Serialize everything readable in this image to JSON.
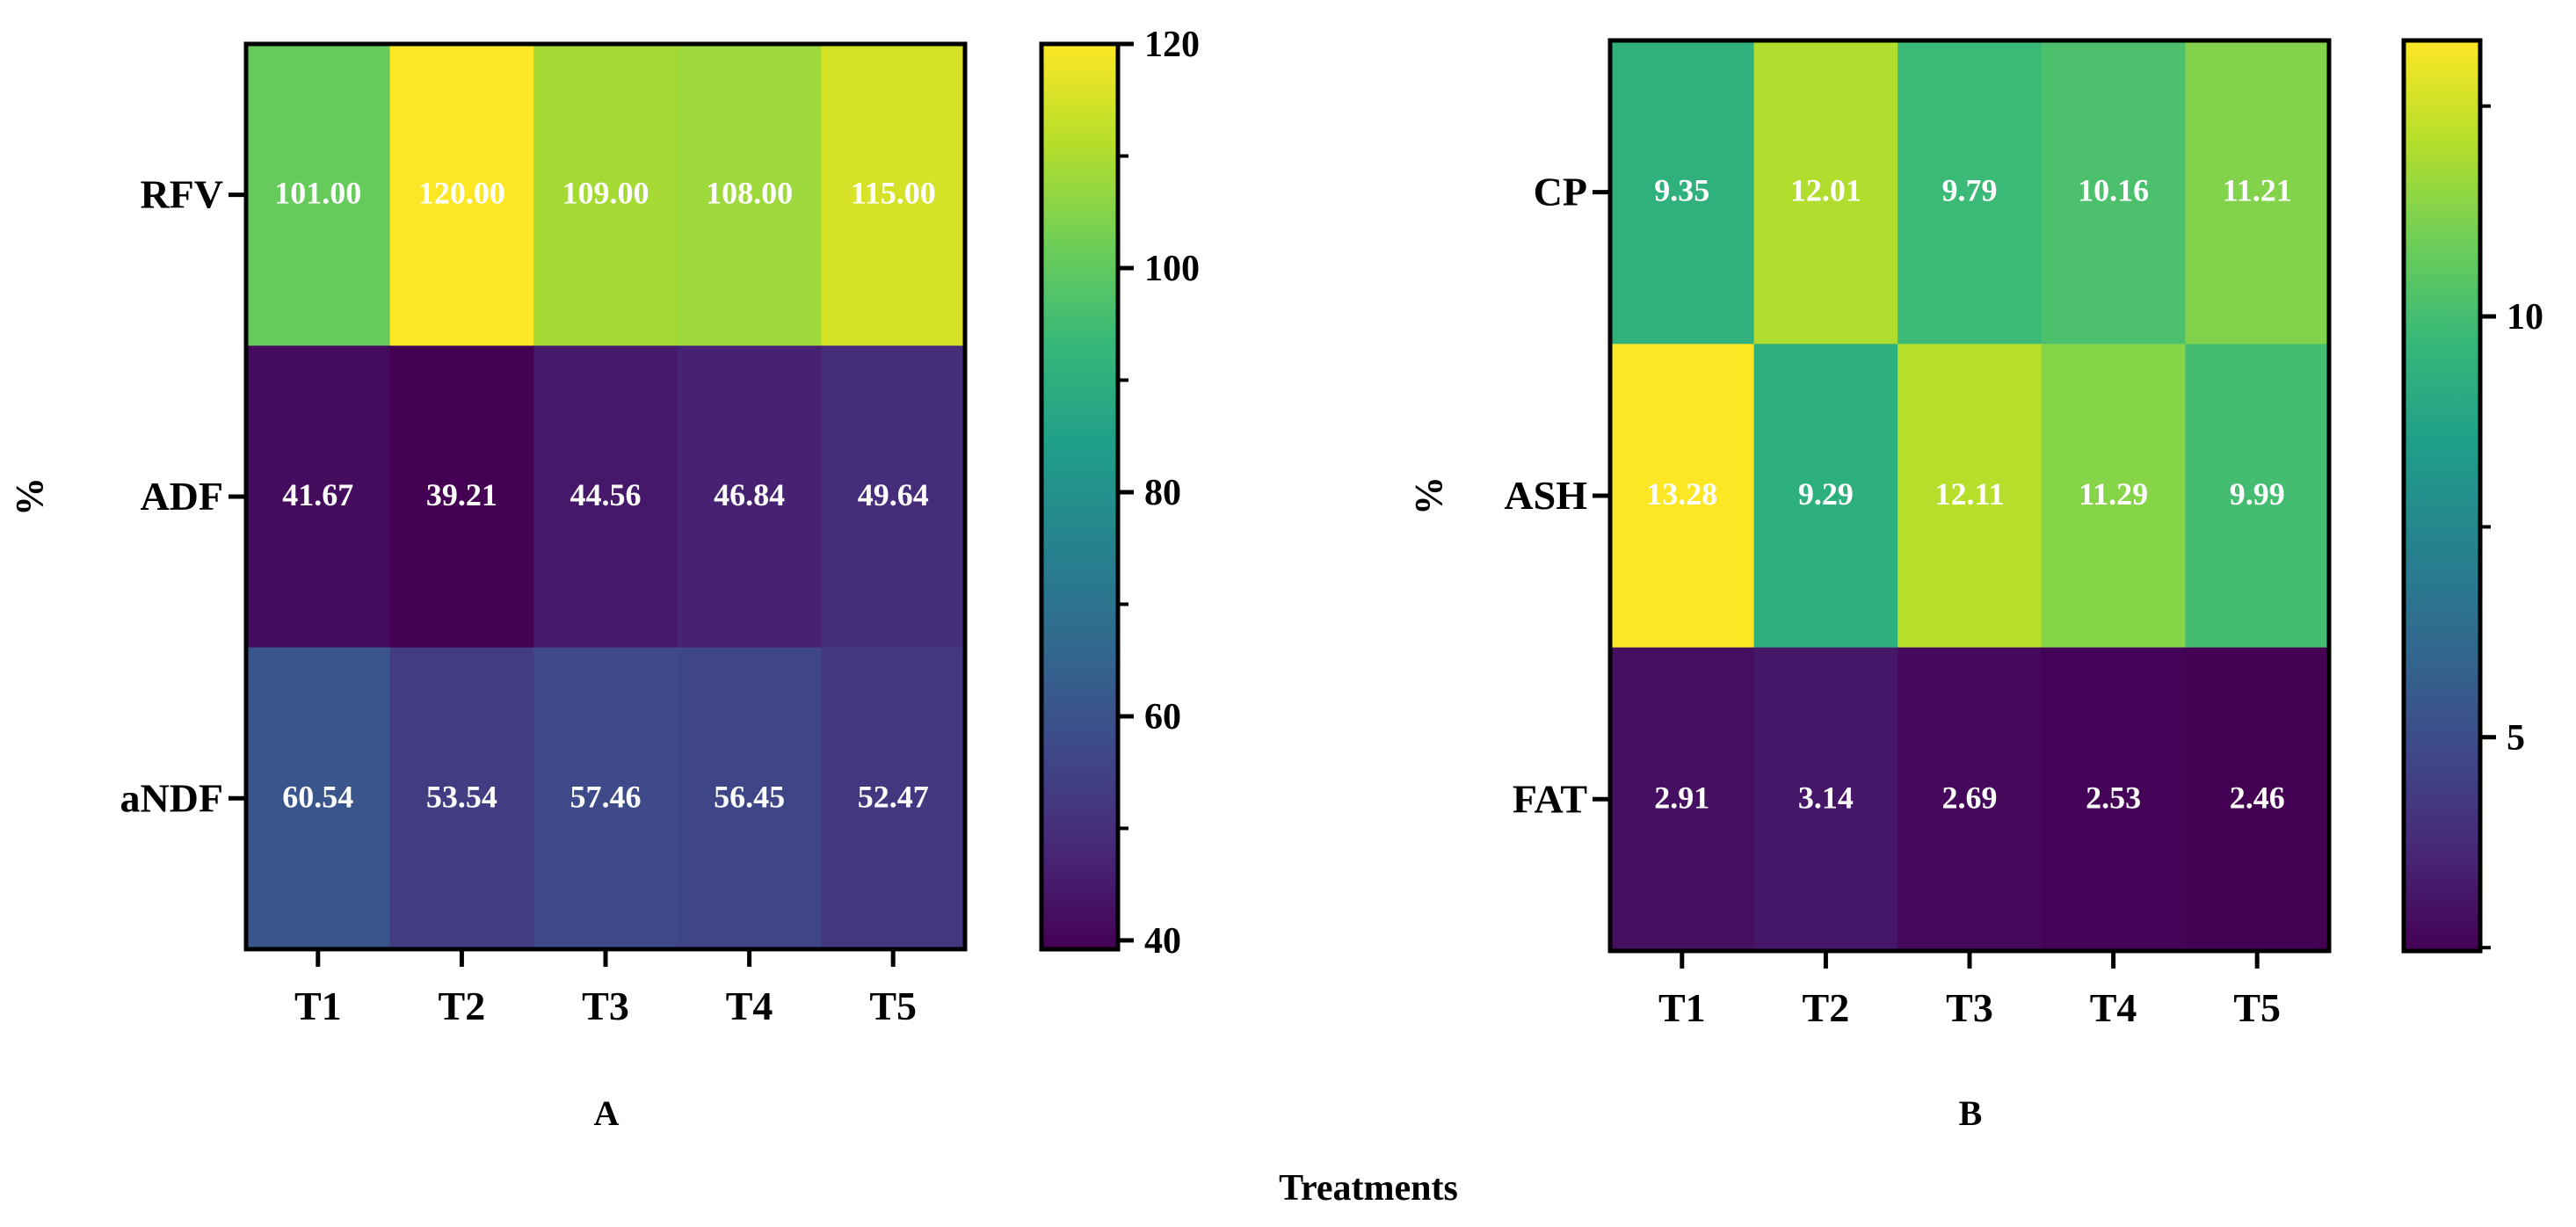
{
  "xlabel": "Treatments",
  "colors": {
    "viridis": [
      "#440154",
      "#482878",
      "#3e4989",
      "#31688e",
      "#26828e",
      "#1f9e89",
      "#35b779",
      "#6ece58",
      "#b5de2b",
      "#fde725"
    ],
    "cell_text": "#ffffff",
    "axis": "#000000"
  },
  "chart_data": [
    {
      "type": "heatmap",
      "panel_label": "A",
      "ylabel": "%",
      "x_categories": [
        "T1",
        "T2",
        "T3",
        "T4",
        "T5"
      ],
      "y_categories": [
        "RFV",
        "ADF",
        "aNDF"
      ],
      "values": [
        [
          101.0,
          120.0,
          109.0,
          108.0,
          115.0
        ],
        [
          41.67,
          39.21,
          44.56,
          46.84,
          49.64
        ],
        [
          60.54,
          53.54,
          57.46,
          56.45,
          52.47
        ]
      ],
      "value_labels": [
        [
          "101.00",
          "120.00",
          "109.00",
          "108.00",
          "115.00"
        ],
        [
          "41.67",
          "39.21",
          "44.56",
          "46.84",
          "49.64"
        ],
        [
          "60.54",
          "53.54",
          "57.46",
          "56.45",
          "52.47"
        ]
      ],
      "color_range": [
        39.21,
        120
      ],
      "colorbar_ticks": [
        40,
        60,
        80,
        100,
        120
      ],
      "colorbar_tick_labels": [
        "40",
        "60",
        "80",
        "100",
        "120"
      ],
      "colormap": "viridis"
    },
    {
      "type": "heatmap",
      "panel_label": "B",
      "ylabel": "%",
      "x_categories": [
        "T1",
        "T2",
        "T3",
        "T4",
        "T5"
      ],
      "y_categories": [
        "CP",
        "ASH",
        "FAT"
      ],
      "values": [
        [
          9.35,
          12.01,
          9.79,
          10.16,
          11.21
        ],
        [
          13.28,
          9.29,
          12.11,
          11.29,
          9.99
        ],
        [
          2.91,
          3.14,
          2.69,
          2.53,
          2.46
        ]
      ],
      "value_labels": [
        [
          "9.35",
          "12.01",
          "9.79",
          "10.16",
          "11.21"
        ],
        [
          "13.28",
          "9.29",
          "12.11",
          "11.29",
          "9.99"
        ],
        [
          "2.91",
          "3.14",
          "2.69",
          "2.53",
          "2.46"
        ]
      ],
      "color_range": [
        2.46,
        13.28
      ],
      "colorbar_ticks": [
        5,
        10
      ],
      "colorbar_tick_labels": [
        "5",
        "10"
      ],
      "colormap": "viridis"
    }
  ]
}
